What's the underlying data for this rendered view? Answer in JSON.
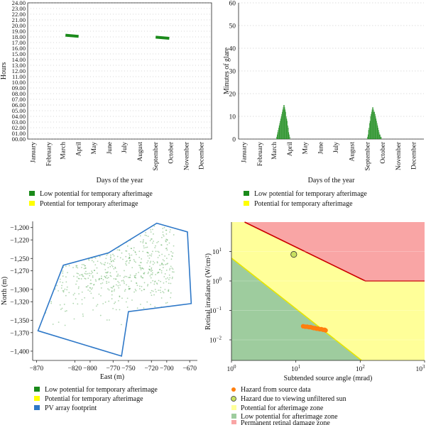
{
  "colors": {
    "low_potential": "#1a8a1a",
    "potential": "#ffff00",
    "footprint": "#2e78c8",
    "hazard": "#ff7f0e",
    "sun_fill": "#c8e060",
    "zone_potential": "#ffff99",
    "zone_low": "#9ecc9e",
    "zone_damage": "#f9a5a5",
    "damage_line": "#cc0000",
    "low_line": "#e6e600"
  },
  "chart_data": [
    {
      "id": "hours-of-day",
      "type": "scatter",
      "ylabel": "Hours",
      "xlabel": "Days of the year",
      "ylim": [
        0,
        24
      ],
      "yticks": [
        "00.00",
        "01.00",
        "02.00",
        "03.00",
        "04.00",
        "05.00",
        "06.00",
        "07.00",
        "08.00",
        "09.00",
        "10.00",
        "11.00",
        "12.00",
        "13.00",
        "14.00",
        "15.00",
        "16.00",
        "17.00",
        "18.00",
        "19.00",
        "20.00",
        "21.00",
        "22.00",
        "23.00",
        "24.00"
      ],
      "months": [
        "January",
        "February",
        "March",
        "April",
        "May",
        "June",
        "July",
        "August",
        "September",
        "October",
        "November",
        "December"
      ],
      "series": [
        {
          "name": "Low potential for temporary afterimage",
          "segments": [
            {
              "x_start": 75,
              "x_end": 101,
              "y_start": 18.3,
              "y_end": 18.1
            },
            {
              "x_start": 254,
              "x_end": 281,
              "y_start": 17.95,
              "y_end": 17.75
            }
          ]
        }
      ],
      "legend": [
        "Low potential for temporary afterimage",
        "Potential for temporary afterimage"
      ]
    },
    {
      "id": "minutes-of-glare",
      "type": "bar",
      "ylabel": "Minutes of glare",
      "xlabel": "Days of the year",
      "ylim": [
        0,
        60
      ],
      "yticks": [
        0,
        10,
        20,
        30,
        40,
        50,
        60
      ],
      "months": [
        "January",
        "February",
        "March",
        "April",
        "May",
        "June",
        "July",
        "August",
        "September",
        "October",
        "November",
        "December"
      ],
      "series": [
        {
          "name": "Low potential for temporary afterimage",
          "x": [
            75,
            76,
            77,
            78,
            79,
            80,
            81,
            82,
            83,
            84,
            85,
            86,
            87,
            88,
            89,
            90,
            91,
            92,
            93,
            94,
            95,
            96,
            97,
            98,
            99,
            100,
            101,
            254,
            255,
            256,
            257,
            258,
            259,
            260,
            261,
            262,
            263,
            264,
            265,
            266,
            267,
            268,
            269,
            270,
            271,
            272,
            273,
            274,
            275,
            276,
            277,
            278,
            279,
            280,
            281
          ],
          "values": [
            1,
            2,
            3,
            4,
            5,
            6,
            7,
            8,
            9,
            10,
            11,
            12,
            13,
            14,
            15,
            15,
            14,
            13,
            12,
            10,
            9,
            8,
            6,
            5,
            3,
            2,
            1,
            1,
            2,
            4,
            5,
            7,
            8,
            10,
            11,
            12,
            13,
            14,
            14,
            13,
            12,
            12,
            11,
            10,
            9,
            8,
            7,
            6,
            5,
            4,
            3,
            2,
            2,
            1,
            1
          ]
        }
      ],
      "legend": [
        "Low potential for temporary afterimage",
        "Potential for temporary afterimage"
      ]
    },
    {
      "id": "pv-footprint",
      "type": "scatter",
      "xlabel": "East (m)",
      "ylabel": "North (m)",
      "xlim": [
        -875,
        -660
      ],
      "ylim": [
        -1415,
        -1190
      ],
      "xticks": [
        -870,
        -820,
        -800,
        -770,
        -750,
        -720,
        -700,
        -670
      ],
      "xtick_labels": [
        "−870",
        "−820",
        "−800",
        "−770",
        "−750",
        "−720",
        "−700",
        "−670"
      ],
      "yticks": [
        -1200,
        -1220,
        -1250,
        -1270,
        -1300,
        -1320,
        -1350,
        -1370,
        -1400
      ],
      "ytick_labels": [
        "−1,200",
        "−1,220",
        "−1,250",
        "−1,270",
        "−1,300",
        "−1,320",
        "−1,350",
        "−1,370",
        "−1,400"
      ],
      "footprint": [
        [
          -713,
          -1193
        ],
        [
          -673,
          -1207
        ],
        [
          -668,
          -1323
        ],
        [
          -750,
          -1336
        ],
        [
          -759,
          -1408
        ],
        [
          -868,
          -1367
        ],
        [
          -835,
          -1261
        ],
        [
          -776,
          -1241
        ]
      ],
      "legend": [
        "Low potential for temporary afterimage",
        "Potential for temporary afterimage",
        "PV array footprint"
      ]
    },
    {
      "id": "retinal-hazard",
      "type": "scatter",
      "xlabel": "Subtended source angle (mrad)",
      "ylabel": "Retinal irradiance (W/cm²)",
      "xscale": "log",
      "yscale": "log",
      "xlim": [
        1,
        1000
      ],
      "ylim": [
        0.002,
        100
      ],
      "xticks": [
        {
          "value": 1,
          "base": "10",
          "exp": "0"
        },
        {
          "value": 10,
          "base": "10",
          "exp": "1"
        },
        {
          "value": 100,
          "base": "10",
          "exp": "2"
        },
        {
          "value": 1000,
          "base": "10",
          "exp": "3"
        }
      ],
      "yticks": [
        {
          "value": 0.01,
          "base": "10",
          "exp": "−2"
        },
        {
          "value": 0.1,
          "base": "10",
          "exp": "−1"
        },
        {
          "value": 1,
          "base": "10",
          "exp": "0"
        },
        {
          "value": 10,
          "base": "10",
          "exp": "1"
        }
      ],
      "hazard_points": [
        [
          13.0,
          0.029
        ],
        [
          14.0,
          0.028
        ],
        [
          15.0,
          0.028
        ],
        [
          16.0,
          0.027
        ],
        [
          17.0,
          0.027
        ],
        [
          18.0,
          0.026
        ],
        [
          19.0,
          0.025
        ],
        [
          20.0,
          0.025
        ],
        [
          21.0,
          0.024
        ],
        [
          22.0,
          0.024
        ],
        [
          23.5,
          0.023
        ],
        [
          25.0,
          0.023
        ],
        [
          26.5,
          0.022
        ],
        [
          28.0,
          0.022
        ],
        [
          29.0,
          0.021
        ]
      ],
      "sun_point": [
        9.3,
        8.0
      ],
      "damage_boundary": [
        [
          1.6,
          100
        ],
        [
          120,
          1.0
        ],
        [
          1000,
          1.0
        ]
      ],
      "low_boundary": [
        [
          1,
          6
        ],
        [
          105,
          0.002
        ]
      ],
      "legend": [
        "Hazard from source data",
        "Hazard due to viewing unfiltered sun",
        "Potential for afterimage zone",
        "Low potential for afterimage zone",
        "Permanent retinal damage zone"
      ]
    }
  ]
}
